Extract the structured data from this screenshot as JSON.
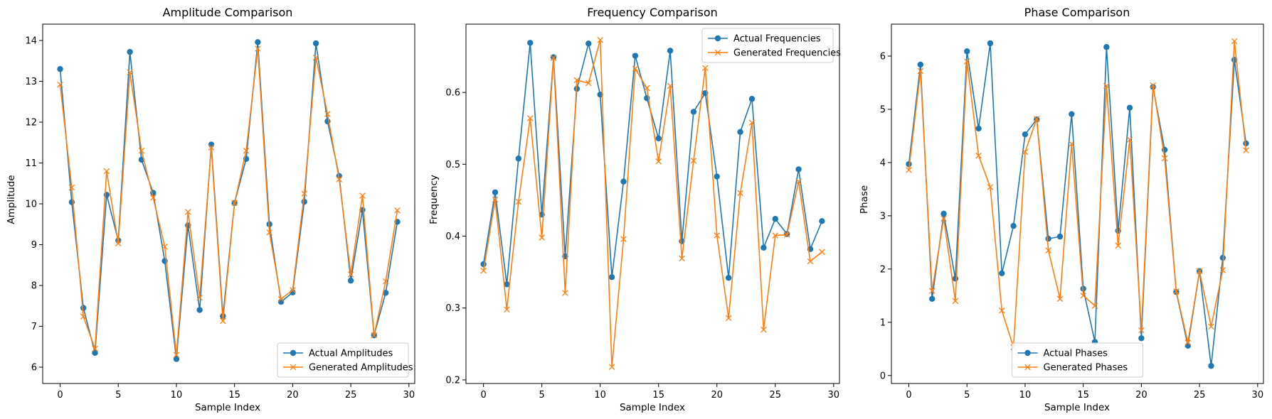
{
  "chart_data": [
    {
      "type": "line",
      "title": "Amplitude Comparison",
      "xlabel": "Sample Index",
      "ylabel": "Amplitude",
      "xlim": [
        -1.5,
        30.5
      ],
      "ylim": [
        5.6,
        14.4
      ],
      "xticks": [
        0,
        5,
        10,
        15,
        20,
        25,
        30
      ],
      "yticks": [
        6,
        7,
        8,
        9,
        10,
        11,
        12,
        13,
        14
      ],
      "legend_position": "lower-right",
      "x": [
        0,
        1,
        2,
        3,
        4,
        5,
        6,
        7,
        8,
        9,
        10,
        11,
        12,
        13,
        14,
        15,
        16,
        17,
        18,
        19,
        20,
        21,
        22,
        23,
        24,
        25,
        26,
        27,
        28,
        29
      ],
      "series": [
        {
          "name": "Actual Amplitudes",
          "color": "#1f77b4",
          "marker": "circle",
          "values": [
            13.3,
            10.04,
            7.45,
            6.35,
            10.22,
            9.1,
            13.72,
            11.08,
            10.27,
            8.6,
            6.2,
            9.47,
            7.4,
            11.45,
            7.25,
            10.02,
            11.1,
            13.96,
            9.5,
            7.6,
            7.83,
            10.05,
            13.93,
            12.02,
            10.68,
            8.12,
            9.85,
            6.78,
            7.82,
            9.56
          ]
        },
        {
          "name": "Generated Amplitudes",
          "color": "#ff7f0e",
          "marker": "x",
          "values": [
            12.92,
            10.4,
            7.24,
            6.45,
            10.8,
            9.03,
            13.22,
            11.3,
            10.15,
            8.95,
            6.3,
            9.8,
            7.7,
            11.38,
            7.13,
            10.02,
            11.3,
            13.8,
            9.3,
            7.67,
            7.89,
            10.25,
            13.58,
            12.2,
            10.6,
            8.27,
            10.2,
            6.78,
            8.1,
            9.84
          ]
        }
      ]
    },
    {
      "type": "line",
      "title": "Frequency Comparison",
      "xlabel": "Sample Index",
      "ylabel": "Frequency",
      "xlim": [
        -1.5,
        30.5
      ],
      "ylim": [
        0.195,
        0.695
      ],
      "xticks": [
        0,
        5,
        10,
        15,
        20,
        25,
        30
      ],
      "yticks": [
        0.2,
        0.3,
        0.4,
        0.5,
        0.6
      ],
      "legend_position": "upper-right",
      "x": [
        0,
        1,
        2,
        3,
        4,
        5,
        6,
        7,
        8,
        9,
        10,
        11,
        12,
        13,
        14,
        15,
        16,
        17,
        18,
        19,
        20,
        21,
        22,
        23,
        24,
        25,
        26,
        27,
        28,
        29
      ],
      "series": [
        {
          "name": "Actual Frequencies",
          "color": "#1f77b4",
          "marker": "circle",
          "values": [
            0.361,
            0.461,
            0.333,
            0.508,
            0.669,
            0.43,
            0.649,
            0.372,
            0.605,
            0.668,
            0.597,
            0.343,
            0.476,
            0.651,
            0.592,
            0.536,
            0.658,
            0.393,
            0.573,
            0.599,
            0.483,
            0.342,
            0.545,
            0.591,
            0.384,
            0.424,
            0.403,
            0.493,
            0.382,
            0.421
          ]
        },
        {
          "name": "Generated Frequencies",
          "color": "#ff7f0e",
          "marker": "x",
          "values": [
            0.352,
            0.451,
            0.298,
            0.448,
            0.564,
            0.398,
            0.648,
            0.321,
            0.617,
            0.613,
            0.673,
            0.218,
            0.396,
            0.633,
            0.606,
            0.504,
            0.609,
            0.369,
            0.505,
            0.634,
            0.401,
            0.286,
            0.46,
            0.558,
            0.27,
            0.401,
            0.402,
            0.476,
            0.365,
            0.378
          ]
        }
      ]
    },
    {
      "type": "line",
      "title": "Phase Comparison",
      "xlabel": "Sample Index",
      "ylabel": "Phase",
      "xlim": [
        -1.5,
        30.5
      ],
      "ylim": [
        -0.15,
        6.6
      ],
      "xticks": [
        0,
        5,
        10,
        15,
        20,
        25,
        30
      ],
      "yticks": [
        0,
        1,
        2,
        3,
        4,
        5,
        6
      ],
      "legend_position": "lower-center",
      "x": [
        0,
        1,
        2,
        3,
        4,
        5,
        6,
        7,
        8,
        9,
        10,
        11,
        12,
        13,
        14,
        15,
        16,
        17,
        18,
        19,
        20,
        21,
        22,
        23,
        24,
        25,
        26,
        27,
        28,
        29
      ],
      "series": [
        {
          "name": "Actual Phases",
          "color": "#1f77b4",
          "marker": "circle",
          "values": [
            3.97,
            5.84,
            1.44,
            3.04,
            1.82,
            6.09,
            4.64,
            6.24,
            1.92,
            2.81,
            4.53,
            4.81,
            2.57,
            2.61,
            4.91,
            1.63,
            0.63,
            6.17,
            2.72,
            5.03,
            0.7,
            5.42,
            4.24,
            1.57,
            0.56,
            1.96,
            0.18,
            2.21,
            5.93,
            4.36
          ]
        },
        {
          "name": "Generated Phases",
          "color": "#ff7f0e",
          "marker": "x",
          "values": [
            3.86,
            5.72,
            1.59,
            2.95,
            1.4,
            5.9,
            4.13,
            3.54,
            1.22,
            0.53,
            4.2,
            4.82,
            2.35,
            1.44,
            4.35,
            1.5,
            1.31,
            5.44,
            2.44,
            4.43,
            0.85,
            5.45,
            4.08,
            1.58,
            0.62,
            1.96,
            0.92,
            1.98,
            6.28,
            4.23
          ]
        }
      ]
    }
  ]
}
